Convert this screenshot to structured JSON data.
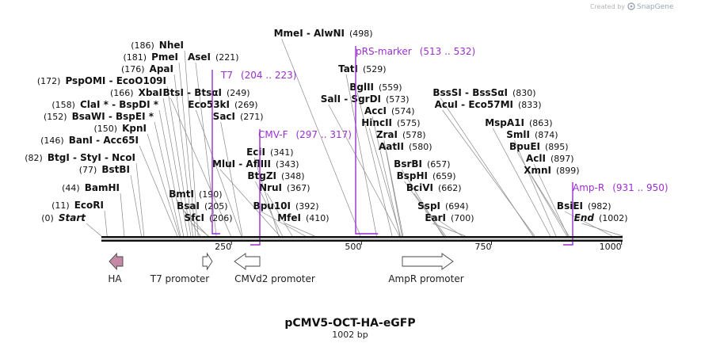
{
  "header": {
    "created_by": "Created by",
    "brand": "SnapGene",
    "brand_icon": "snapgene-logo-icon"
  },
  "plasmid": {
    "name": "pCMV5-OCT-HA-eGFP",
    "length_label": "1002 bp",
    "length": 1002
  },
  "ruler_ticks": [
    {
      "bp": 250,
      "label": "250"
    },
    {
      "bp": 500,
      "label": "500"
    },
    {
      "bp": 750,
      "label": "750"
    },
    {
      "bp": 1000,
      "label": "1000"
    }
  ],
  "sites": [
    {
      "label": "NheI",
      "pos": "(186)",
      "bp": 186
    },
    {
      "label": "PmeI",
      "pos": "(181)",
      "bp": 181
    },
    {
      "label": "ApaI",
      "pos": "(176)",
      "bp": 176
    },
    {
      "label": "PspOMI - EcoO109I",
      "pos": "(172)",
      "bp": 172
    },
    {
      "label": "XbaI",
      "pos": "(166)",
      "bp": 166
    },
    {
      "label": "ClaI * - BspDI *",
      "pos": "(158)",
      "bp": 158
    },
    {
      "label": "BsaWI - BspEI *",
      "pos": "(152)",
      "bp": 152
    },
    {
      "label": "KpnI",
      "pos": "(150)",
      "bp": 150
    },
    {
      "label": "BanI - Acc65I",
      "pos": "(146)",
      "bp": 146
    },
    {
      "label": "BtgI - StyI - NcoI",
      "pos": "(82)",
      "bp": 82
    },
    {
      "label": "BstBI",
      "pos": "(77)",
      "bp": 77
    },
    {
      "label": "BamHI",
      "pos": "(44)",
      "bp": 44
    },
    {
      "label": "EcoRI",
      "pos": "(11)",
      "bp": 11
    },
    {
      "label": "Start",
      "pos": "(0)",
      "bp": 0
    },
    {
      "label": "AseI",
      "pos": "(221)",
      "bp": 221
    },
    {
      "label": "BtsI - BtsαI",
      "pos": "(249)",
      "bp": 249
    },
    {
      "label": "Eco53kI",
      "pos": "(269)",
      "bp": 269
    },
    {
      "label": "SacI",
      "pos": "(271)",
      "bp": 271
    },
    {
      "label": "BmtI",
      "pos": "(190)",
      "bp": 190
    },
    {
      "label": "BsaI",
      "pos": "(205)",
      "bp": 205
    },
    {
      "label": "SfcI",
      "pos": "(206)",
      "bp": 206
    },
    {
      "label": "EciI",
      "pos": "(341)",
      "bp": 341
    },
    {
      "label": "MluI - AflIII",
      "pos": "(343)",
      "bp": 343
    },
    {
      "label": "BtgZI",
      "pos": "(348)",
      "bp": 348
    },
    {
      "label": "NruI",
      "pos": "(367)",
      "bp": 367
    },
    {
      "label": "Bpu10I",
      "pos": "(392)",
      "bp": 392
    },
    {
      "label": "MfeI",
      "pos": "(410)",
      "bp": 410
    },
    {
      "label": "MmeI - AlwNI",
      "pos": "(498)",
      "bp": 498
    },
    {
      "label": "TatI",
      "pos": "(529)",
      "bp": 529
    },
    {
      "label": "BglII",
      "pos": "(559)",
      "bp": 559
    },
    {
      "label": "SalI - SgrDI",
      "pos": "(573)",
      "bp": 573
    },
    {
      "label": "AccI",
      "pos": "(574)",
      "bp": 574
    },
    {
      "label": "HincII",
      "pos": "(575)",
      "bp": 575
    },
    {
      "label": "ZraI",
      "pos": "(578)",
      "bp": 578
    },
    {
      "label": "AatII",
      "pos": "(580)",
      "bp": 580
    },
    {
      "label": "BsrBI",
      "pos": "(657)",
      "bp": 657
    },
    {
      "label": "BspHI",
      "pos": "(659)",
      "bp": 659
    },
    {
      "label": "BciVI",
      "pos": "(662)",
      "bp": 662
    },
    {
      "label": "SspI",
      "pos": "(694)",
      "bp": 694
    },
    {
      "label": "EarI",
      "pos": "(700)",
      "bp": 700
    },
    {
      "label": "BssSI - BssSαI",
      "pos": "(830)",
      "bp": 830
    },
    {
      "label": "AcuI - Eco57MI",
      "pos": "(833)",
      "bp": 833
    },
    {
      "label": "MspA1I",
      "pos": "(863)",
      "bp": 863
    },
    {
      "label": "SmlI",
      "pos": "(874)",
      "bp": 874
    },
    {
      "label": "BpuEI",
      "pos": "(895)",
      "bp": 895
    },
    {
      "label": "AclI",
      "pos": "(897)",
      "bp": 897
    },
    {
      "label": "XmnI",
      "pos": "(899)",
      "bp": 899
    },
    {
      "label": "BsiEI",
      "pos": "(982)",
      "bp": 982
    },
    {
      "label": "End",
      "pos": "(1002)",
      "bp": 1002
    }
  ],
  "primers": [
    {
      "label": "T7",
      "range": "(204 .. 223)",
      "start": 204,
      "end": 223
    },
    {
      "label": "CMV-F",
      "range": "(297 .. 317)",
      "start": 297,
      "end": 317
    },
    {
      "label": "pRS-marker",
      "range": "(513 .. 532)",
      "start": 513,
      "end": 532
    },
    {
      "label": "Amp-R",
      "range": "(931 .. 950)",
      "start": 931,
      "end": 950
    }
  ],
  "features": [
    {
      "label": "HA",
      "direction": "reverse",
      "color": "#c48aa5"
    },
    {
      "label": "T7 promoter",
      "direction": "forward",
      "color": "#ffffff"
    },
    {
      "label": "CMVd2 promoter",
      "direction": "reverse",
      "color": "#ffffff"
    },
    {
      "label": "AmpR promoter",
      "direction": "forward",
      "color": "#ffffff"
    }
  ],
  "colors": {
    "primer": "#9a2fd0",
    "backbone": "#111111",
    "leader": "#8a8a8a"
  }
}
